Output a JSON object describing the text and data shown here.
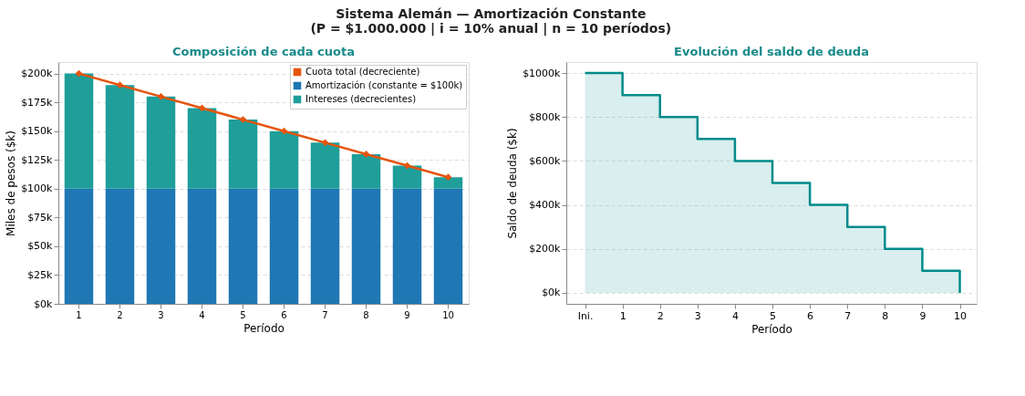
{
  "chart_data": [
    {
      "type": "bar",
      "title": "Composición de cada cuota",
      "xlabel": "Período",
      "ylabel": "Miles de pesos ($k)",
      "annotations": [
        "Sistema Alemán — Amortización Constante",
        "(P = $1.000.000 | i = 10% anual | n = 10 períodos)"
      ],
      "categories": [
        "1",
        "2",
        "3",
        "4",
        "5",
        "6",
        "7",
        "8",
        "9",
        "10"
      ],
      "stacked": true,
      "series": [
        {
          "name": "Amortización (constante = $100k)",
          "color": "#1f77b4",
          "values": [
            100,
            100,
            100,
            100,
            100,
            100,
            100,
            100,
            100,
            100
          ]
        },
        {
          "name": "Intereses (decrecientes)",
          "color": "#1f9e9a",
          "values": [
            100,
            90,
            80,
            70,
            60,
            50,
            40,
            30,
            20,
            10
          ]
        },
        {
          "name": "Cuota total (decreciente)",
          "type": "line",
          "marker": "diamond",
          "color": "#e6550d",
          "values": [
            200,
            190,
            180,
            170,
            160,
            150,
            140,
            130,
            120,
            110
          ]
        }
      ],
      "ylim": [
        0,
        210
      ],
      "yticks": [
        {
          "value": 0,
          "label": "$0k"
        },
        {
          "value": 25,
          "label": "$25k"
        },
        {
          "value": 50,
          "label": "$50k"
        },
        {
          "value": 75,
          "label": "$75k"
        },
        {
          "value": 100,
          "label": "$100k"
        },
        {
          "value": 125,
          "label": "$125k"
        },
        {
          "value": 150,
          "label": "$150k"
        },
        {
          "value": 175,
          "label": "$175k"
        },
        {
          "value": 200,
          "label": "$200k"
        }
      ],
      "grid": "y",
      "legend": "top right"
    },
    {
      "type": "step",
      "title": "Evolución del saldo de deuda",
      "xlabel": "Período",
      "ylabel": "Saldo de deuda ($k)",
      "x": [
        0,
        1,
        2,
        3,
        4,
        5,
        6,
        7,
        8,
        9,
        10
      ],
      "series": [
        {
          "color": "#008b8b",
          "values": [
            1000,
            900,
            800,
            700,
            600,
            500,
            400,
            300,
            200,
            100,
            0
          ]
        }
      ],
      "xlim": [
        -0.5,
        10.45
      ],
      "xticks": [
        {
          "value": 0,
          "label": "Ini."
        },
        1,
        2,
        3,
        4,
        5,
        6,
        7,
        8,
        9,
        10
      ],
      "ylim": [
        -50,
        1050
      ],
      "yticks": [
        {
          "value": 0,
          "label": "$0k"
        },
        {
          "value": 200,
          "label": "$200k"
        },
        {
          "value": 400,
          "label": "$400k"
        },
        {
          "value": 600,
          "label": "$600k"
        },
        {
          "value": 800,
          "label": "$800k"
        },
        {
          "value": 1000,
          "label": "$1000k"
        }
      ],
      "grid": "y"
    }
  ]
}
